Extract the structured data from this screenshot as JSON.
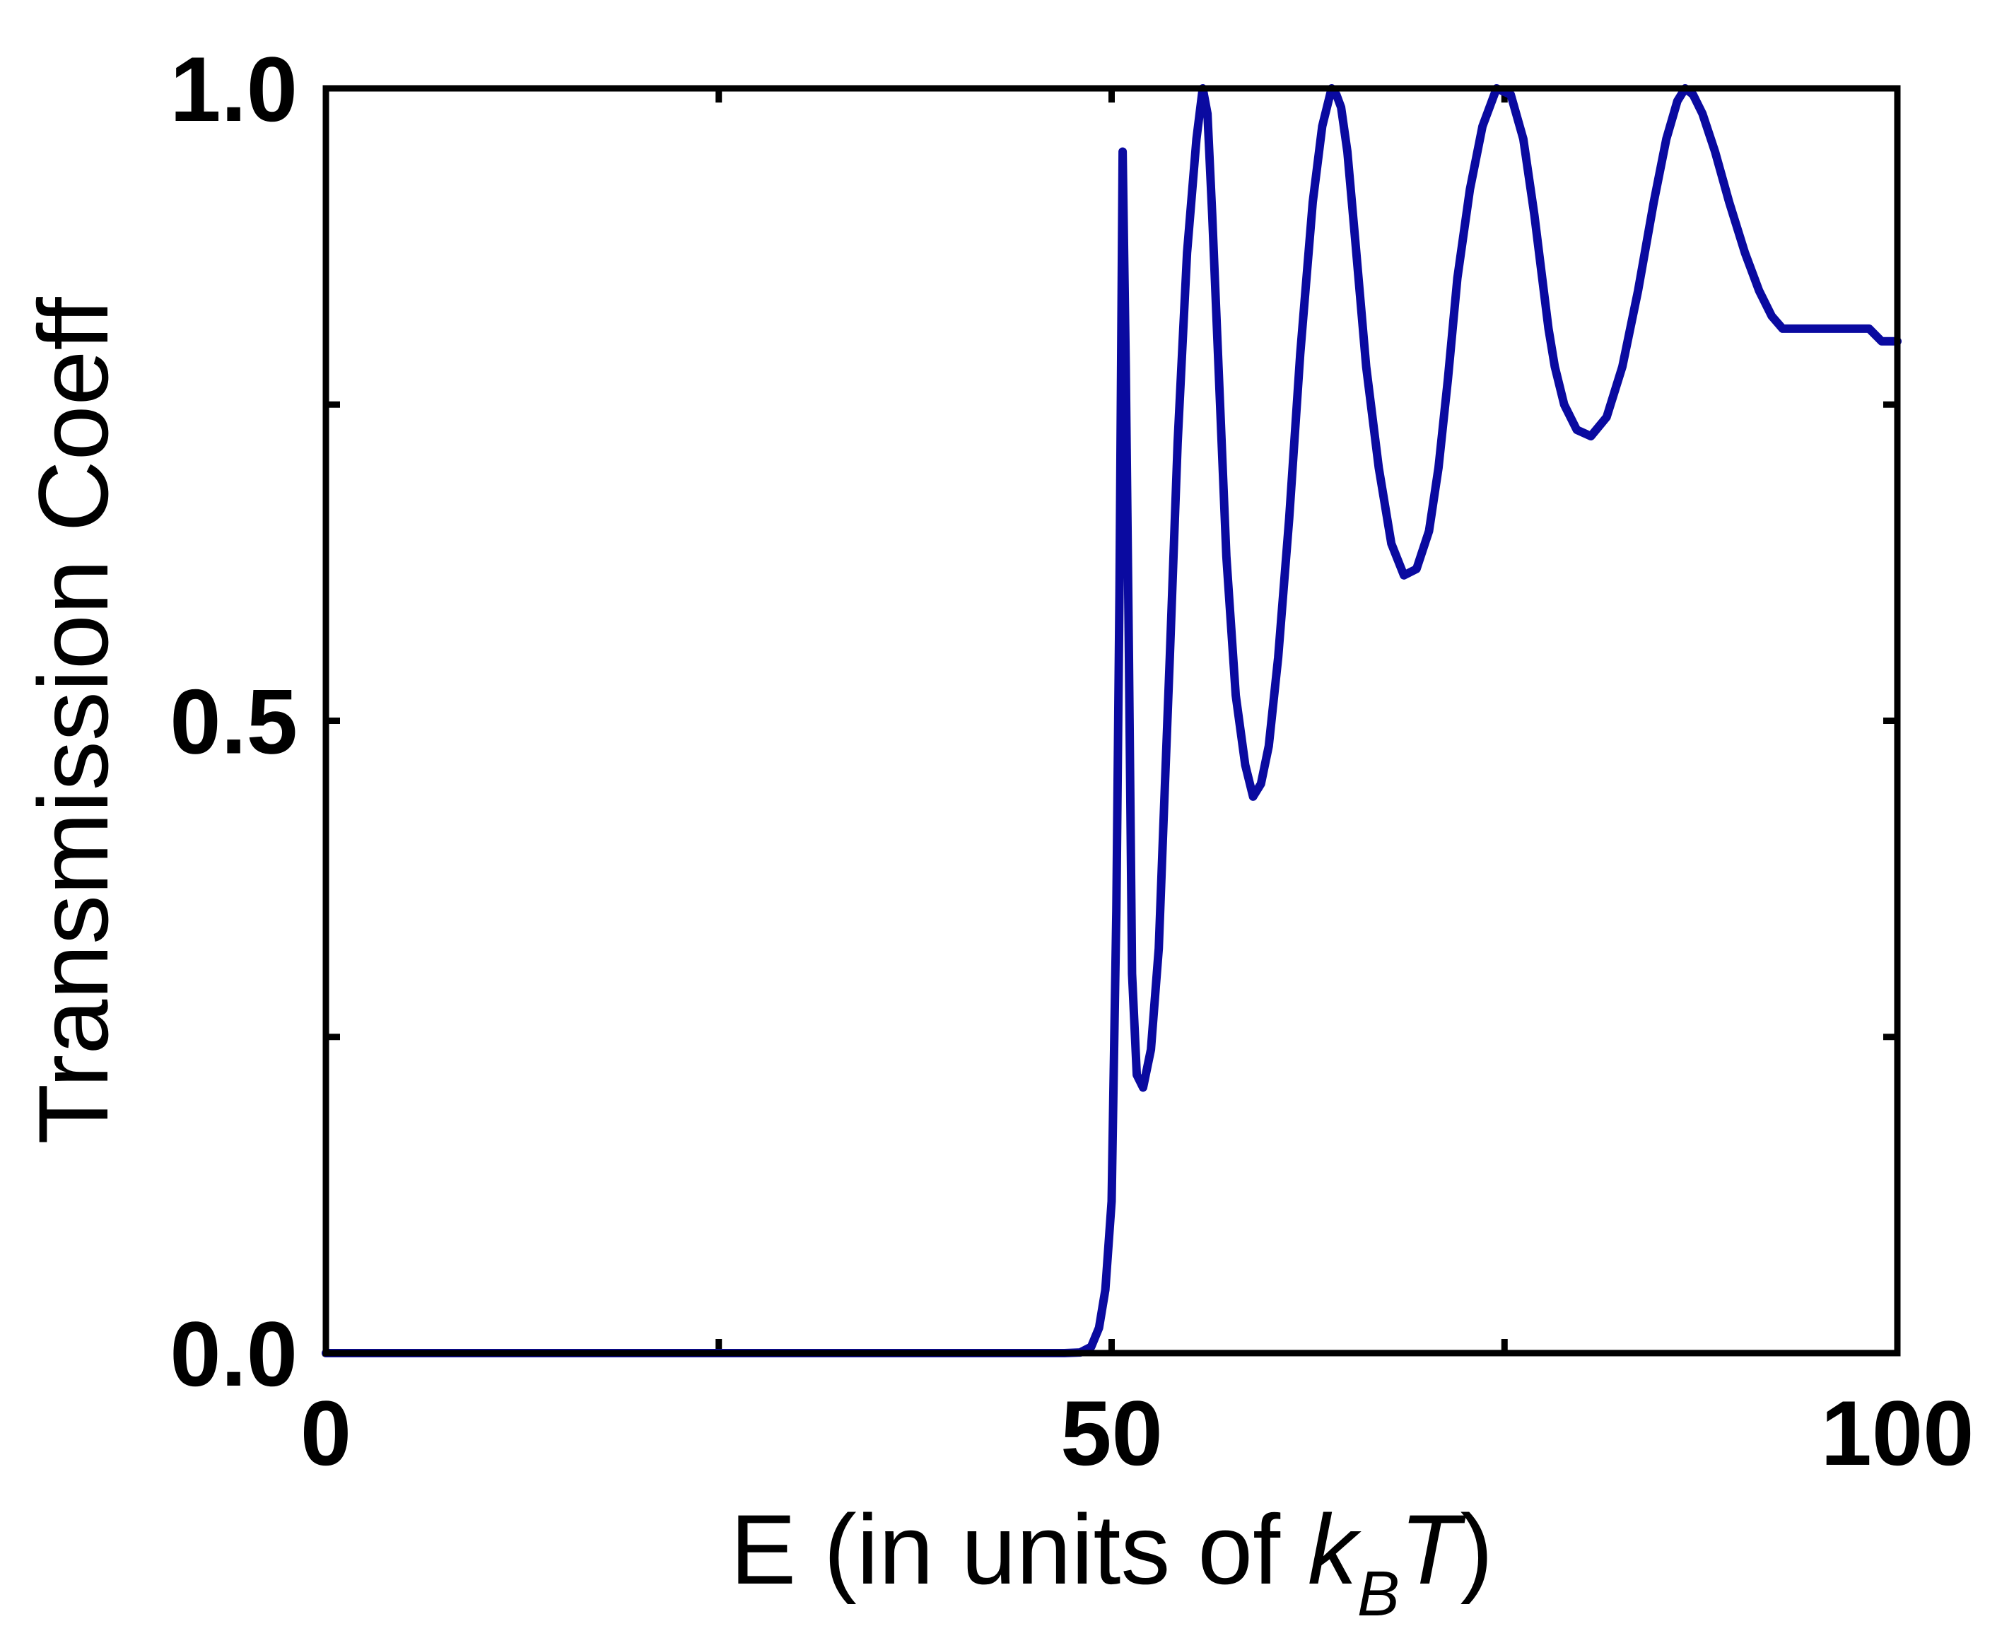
{
  "chart_data": {
    "type": "line",
    "xlabel": {
      "prefix": "E (in units of ",
      "k": "k",
      "sub": "B",
      "t": "T",
      "suffix": ")"
    },
    "ylabel": "Transmission Coeff",
    "xlim": [
      0,
      100
    ],
    "ylim": [
      0,
      1
    ],
    "x_ticks": [
      0,
      25,
      50,
      75,
      100
    ],
    "x_tick_labels": [
      "0",
      "",
      "50",
      "",
      "100"
    ],
    "y_ticks": [
      0,
      0.25,
      0.5,
      0.75,
      1.0
    ],
    "y_tick_labels": [
      "0.0",
      "",
      "0.5",
      "",
      "1.0"
    ],
    "grid": false,
    "colors": {
      "series": "#0a0aa0",
      "axes": "#000000"
    },
    "series": [
      {
        "x": [
          0,
          10,
          20,
          30,
          40,
          47,
          48,
          48.7,
          49.2,
          49.6,
          50.0,
          50.3,
          50.5,
          50.7,
          50.9,
          51.1,
          51.3,
          51.6,
          52.0,
          52.5,
          53.0,
          53.3,
          53.7,
          54.2,
          54.8,
          55.4,
          55.8,
          56.1,
          56.4,
          56.8,
          57.3,
          57.9,
          58.5,
          59.0,
          59.5,
          60.0,
          60.6,
          61.3,
          62.0,
          62.8,
          63.4,
          64.0,
          64.3,
          64.6,
          65.0,
          65.5,
          66.2,
          67.0,
          67.8,
          68.6,
          69.4,
          70.2,
          70.8,
          71.4,
          72.0,
          72.8,
          73.6,
          74.5,
          75.4,
          76.2,
          76.9,
          77.4,
          77.8,
          78.2,
          78.8,
          79.6,
          80.5,
          81.5,
          82.5,
          83.5,
          84.5,
          85.3,
          86.0,
          86.5,
          87.0,
          87.6,
          88.4,
          89.3,
          90.3,
          91.2,
          92.0,
          92.7,
          93.2,
          93.6,
          94.0,
          94.6,
          95.3,
          96.2,
          97.2,
          98.2,
          99.0,
          100
        ],
        "y": [
          0,
          0,
          0,
          0,
          0,
          0,
          0.0005,
          0.005,
          0.02,
          0.05,
          0.12,
          0.35,
          0.6,
          0.95,
          0.78,
          0.55,
          0.3,
          0.22,
          0.21,
          0.24,
          0.32,
          0.42,
          0.55,
          0.72,
          0.87,
          0.96,
          1.0,
          0.98,
          0.9,
          0.78,
          0.63,
          0.52,
          0.465,
          0.44,
          0.45,
          0.48,
          0.55,
          0.66,
          0.79,
          0.91,
          0.97,
          1.0,
          0.995,
          0.985,
          0.95,
          0.88,
          0.78,
          0.7,
          0.64,
          0.615,
          0.62,
          0.65,
          0.7,
          0.77,
          0.85,
          0.92,
          0.97,
          1.0,
          0.995,
          0.96,
          0.9,
          0.85,
          0.81,
          0.78,
          0.75,
          0.73,
          0.725,
          0.74,
          0.78,
          0.84,
          0.91,
          0.96,
          0.99,
          1.0,
          0.995,
          0.98,
          0.95,
          0.91,
          0.87,
          0.84,
          0.82,
          0.81,
          0.81,
          0.81,
          0.81,
          0.81,
          0.81,
          0.81,
          0.81,
          0.81,
          0.8,
          0.8
        ]
      }
    ]
  }
}
